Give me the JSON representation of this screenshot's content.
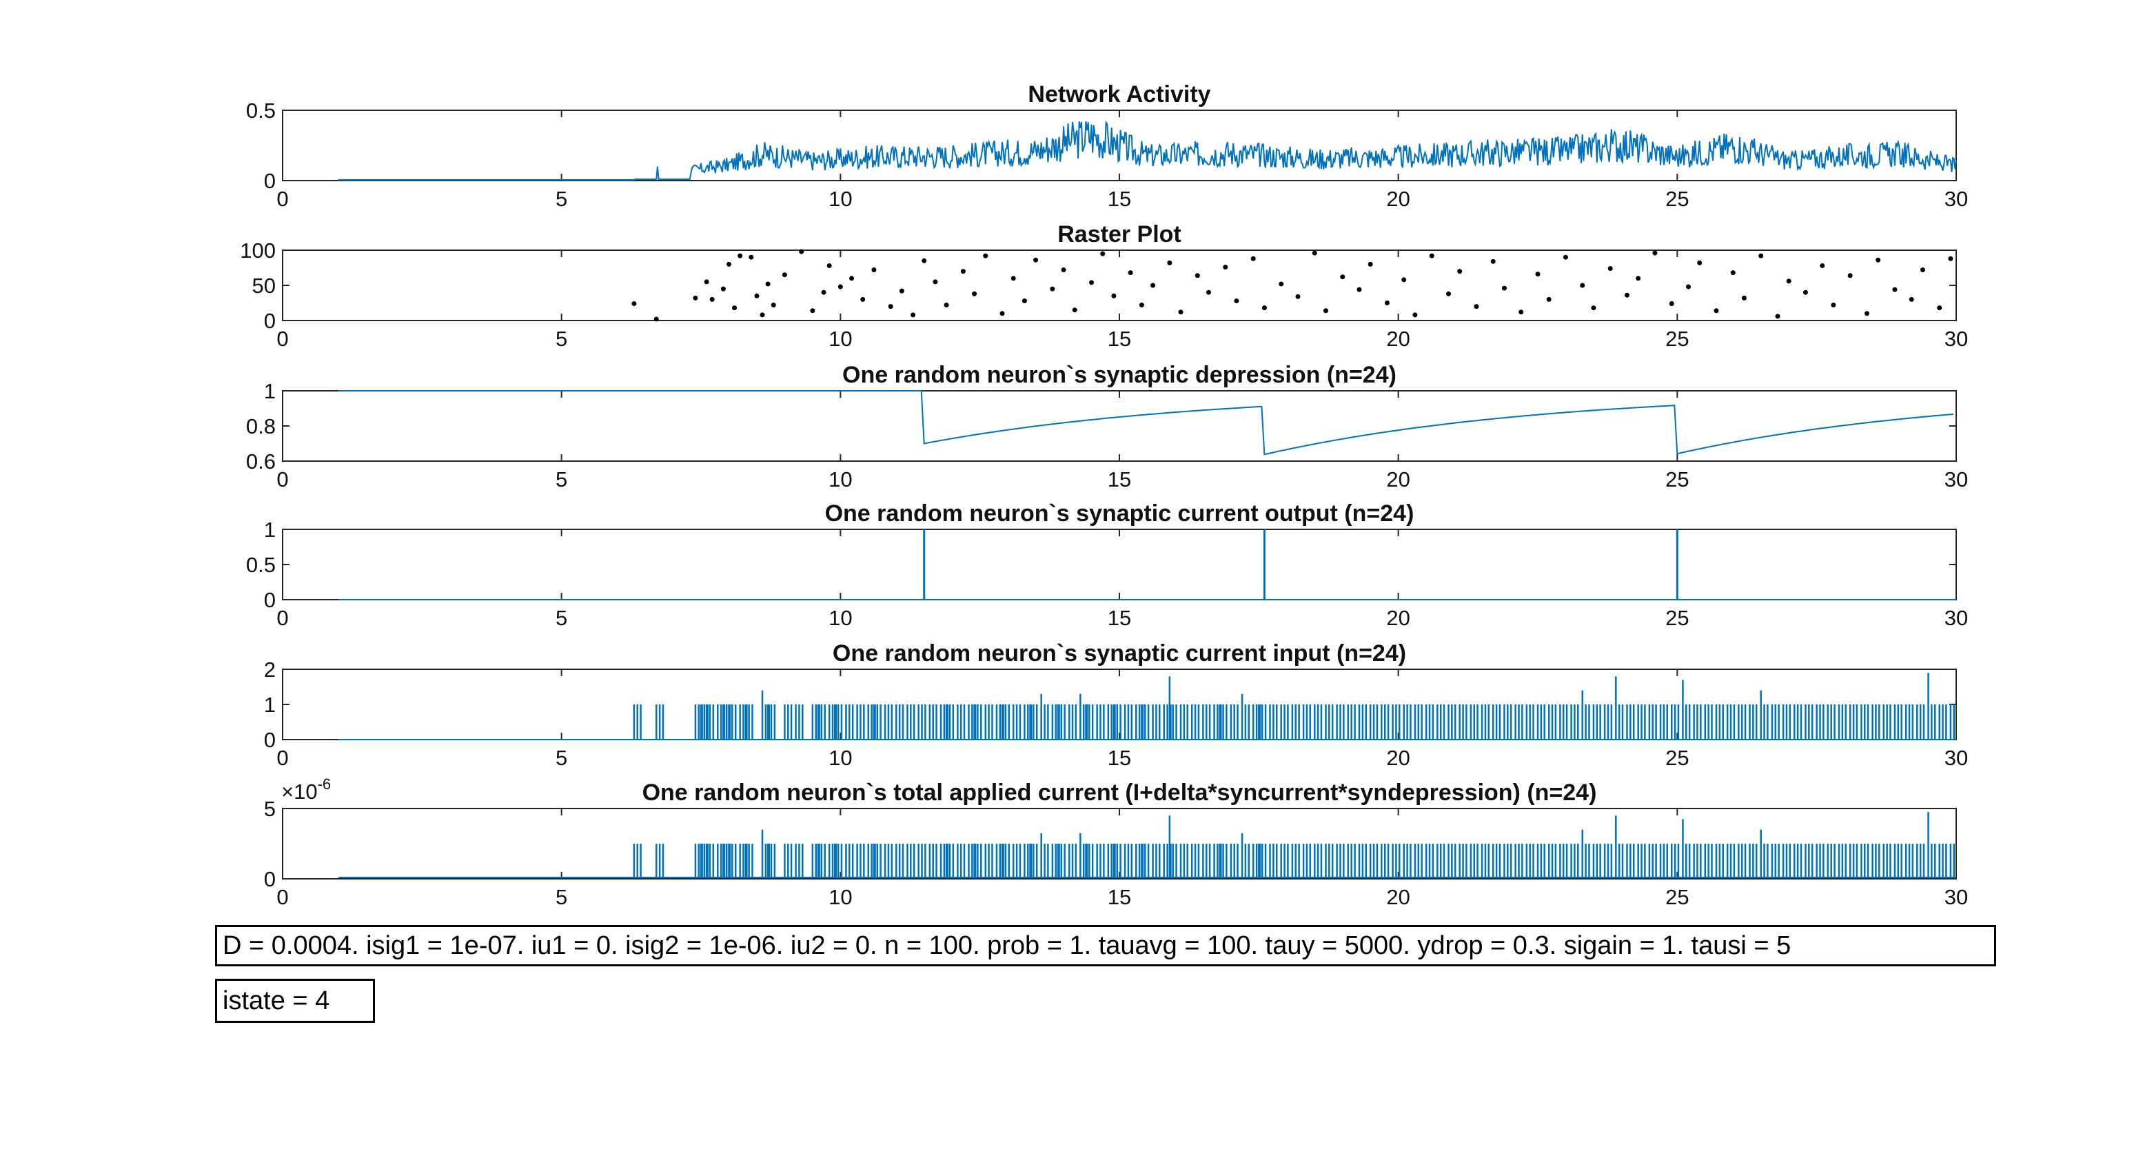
{
  "chart_data": [
    {
      "type": "line",
      "title": "Network Activity",
      "xlim": [
        0,
        30
      ],
      "ylim": [
        0,
        0.5
      ],
      "xticks": [
        0,
        5,
        10,
        15,
        20,
        25,
        30
      ],
      "xtick_labels": [
        "0",
        "5",
        "10",
        "15",
        "20",
        "25",
        "30"
      ],
      "yticks": [
        0,
        0.5
      ],
      "ytick_labels": [
        "0",
        "0.5"
      ],
      "color": "#0072BD",
      "description_points": {
        "x": [
          1,
          6.3,
          6.5,
          6.7,
          7.0,
          7.5,
          8.0,
          8.6,
          9.5,
          10.5,
          12,
          13.5,
          14.5,
          15.5,
          17,
          18.5,
          20,
          21.5,
          23,
          24,
          25,
          26,
          27,
          28,
          29,
          30
        ],
        "y": [
          0.01,
          0.0,
          0.1,
          0.0,
          0.08,
          0.12,
          0.16,
          0.27,
          0.2,
          0.24,
          0.25,
          0.3,
          0.46,
          0.25,
          0.28,
          0.22,
          0.24,
          0.28,
          0.3,
          0.37,
          0.24,
          0.35,
          0.2,
          0.25,
          0.27,
          0.15
        ]
      }
    },
    {
      "type": "scatter",
      "title": "Raster Plot",
      "xlim": [
        0,
        30
      ],
      "ylim": [
        0,
        100
      ],
      "xticks": [
        0,
        5,
        10,
        15,
        20,
        25,
        30
      ],
      "xtick_labels": [
        "0",
        "5",
        "10",
        "15",
        "20",
        "25",
        "30"
      ],
      "yticks": [
        0,
        50,
        100
      ],
      "ytick_labels": [
        "0",
        "50",
        "100"
      ],
      "color": "#000000",
      "x": [
        6.3,
        6.7,
        7.4,
        7.6,
        7.7,
        7.9,
        8.0,
        8.1,
        8.2,
        8.4,
        8.5,
        8.6,
        8.7,
        8.8,
        9.0,
        9.3,
        9.5,
        9.7,
        9.8,
        10.0,
        10.2,
        10.4,
        10.6,
        10.9,
        11.1,
        11.3,
        11.5,
        11.7,
        11.9,
        12.2,
        12.4,
        12.6,
        12.9,
        13.1,
        13.3,
        13.5,
        13.8,
        14.0,
        14.2,
        14.5,
        14.7,
        14.9,
        15.2,
        15.4,
        15.6,
        15.9,
        16.1,
        16.4,
        16.6,
        16.9,
        17.1,
        17.4,
        17.6,
        17.9,
        18.2,
        18.5,
        18.7,
        19.0,
        19.3,
        19.5,
        19.8,
        20.1,
        20.3,
        20.6,
        20.9,
        21.1,
        21.4,
        21.7,
        21.9,
        22.2,
        22.5,
        22.7,
        23.0,
        23.3,
        23.5,
        23.8,
        24.1,
        24.3,
        24.6,
        24.9,
        25.2,
        25.4,
        25.7,
        26.0,
        26.2,
        26.5,
        26.8,
        27.0,
        27.3,
        27.6,
        27.8,
        28.1,
        28.4,
        28.6,
        28.9,
        29.2,
        29.4,
        29.7,
        29.9
      ],
      "y": [
        24,
        2,
        32,
        55,
        30,
        45,
        80,
        18,
        92,
        90,
        35,
        8,
        52,
        22,
        65,
        98,
        14,
        40,
        78,
        48,
        60,
        30,
        72,
        20,
        42,
        8,
        85,
        55,
        22,
        70,
        38,
        92,
        10,
        60,
        28,
        86,
        45,
        72,
        15,
        54,
        95,
        35,
        68,
        22,
        50,
        82,
        12,
        64,
        40,
        76,
        28,
        88,
        18,
        52,
        34,
        96,
        14,
        62,
        44,
        80,
        25,
        58,
        8,
        92,
        38,
        70,
        20,
        84,
        46,
        12,
        66,
        30,
        90,
        50,
        18,
        74,
        36,
        60,
        96,
        24,
        48,
        82,
        14,
        68,
        32,
        92,
        6,
        56,
        40,
        78,
        22,
        64,
        10,
        86,
        44,
        30,
        72,
        18,
        88
      ]
    },
    {
      "type": "line",
      "title": "One random neuron`s synaptic depression (n=24)",
      "xlim": [
        0,
        30
      ],
      "ylim": [
        0.6,
        1
      ],
      "xticks": [
        0,
        5,
        10,
        15,
        20,
        25,
        30
      ],
      "xtick_labels": [
        "0",
        "5",
        "10",
        "15",
        "20",
        "25",
        "30"
      ],
      "yticks": [
        0.6,
        0.8,
        1
      ],
      "ytick_labels": [
        "0.6",
        "0.8",
        "1"
      ],
      "color": "#0072BD",
      "events": [
        11.5,
        17.6,
        25.0
      ],
      "baseline_start": 1.0,
      "drop": 0.3,
      "tau_s": 5
    },
    {
      "type": "line",
      "title": "One random neuron`s synaptic current output (n=24)",
      "xlim": [
        0,
        30
      ],
      "ylim": [
        0,
        1
      ],
      "xticks": [
        0,
        5,
        10,
        15,
        20,
        25,
        30
      ],
      "xtick_labels": [
        "0",
        "5",
        "10",
        "15",
        "20",
        "25",
        "30"
      ],
      "yticks": [
        0,
        0.5,
        1
      ],
      "ytick_labels": [
        "0",
        "0.5",
        "1"
      ],
      "color": "#0072BD",
      "spikes_x": [
        11.5,
        17.6,
        25.0
      ],
      "spikes_y": [
        1,
        1,
        1
      ]
    },
    {
      "type": "line",
      "title": "One random neuron`s synaptic current input (n=24)",
      "xlim": [
        0,
        30
      ],
      "ylim": [
        0,
        2
      ],
      "xticks": [
        0,
        5,
        10,
        15,
        20,
        25,
        30
      ],
      "xtick_labels": [
        "0",
        "5",
        "10",
        "15",
        "20",
        "25",
        "30"
      ],
      "yticks": [
        0,
        1,
        2
      ],
      "ytick_labels": [
        "0",
        "1",
        "2"
      ],
      "color": "#0072BD",
      "spikes_x": [
        6.3,
        6.7,
        7.4,
        7.5,
        7.6,
        7.8,
        7.9,
        8.0,
        8.2,
        8.3,
        8.6,
        8.7,
        9.0,
        9.2,
        9.5,
        9.6,
        9.8,
        9.9,
        10.1,
        10.3,
        10.5,
        10.6,
        10.8,
        11.0,
        11.2,
        11.4,
        11.6,
        11.8,
        11.9,
        12.1,
        12.3,
        12.4,
        12.6,
        12.8,
        12.9,
        13.1,
        13.3,
        13.4,
        13.6,
        13.8,
        13.9,
        14.1,
        14.3,
        14.4,
        14.6,
        14.8,
        14.9,
        15.1,
        15.3,
        15.4,
        15.6,
        15.8,
        15.9,
        16.1,
        16.3,
        16.5,
        16.7,
        16.8,
        17.0,
        17.2,
        17.4,
        17.5,
        17.7,
        17.9,
        18.1,
        18.3,
        18.5,
        18.7,
        18.9,
        19.1,
        19.3,
        19.5,
        19.7,
        19.9,
        20.1,
        20.3,
        20.5,
        20.7,
        20.9,
        21.1,
        21.3,
        21.5,
        21.7,
        21.9,
        22.1,
        22.3,
        22.5,
        22.7,
        22.9,
        23.1,
        23.3,
        23.5,
        23.7,
        23.9,
        24.1,
        24.3,
        24.5,
        24.7,
        24.9,
        25.1,
        25.3,
        25.5,
        25.7,
        25.9,
        26.1,
        26.3,
        26.5,
        26.7,
        26.9,
        27.1,
        27.3,
        27.5,
        27.7,
        27.9,
        28.1,
        28.3,
        28.5,
        28.7,
        28.9,
        29.1,
        29.3,
        29.5,
        29.7,
        29.9
      ],
      "spikes_y": [
        1,
        1,
        1,
        1,
        1,
        1,
        1,
        1,
        1,
        1,
        1.4,
        1,
        1,
        1,
        1,
        1,
        1,
        1,
        1,
        1,
        1,
        1,
        1,
        1,
        1,
        1,
        1,
        1,
        1,
        1,
        1,
        1,
        1,
        1,
        1,
        1,
        1,
        1,
        1.3,
        1,
        1,
        1,
        1.3,
        1,
        1,
        1,
        1,
        1,
        1,
        1,
        1,
        1,
        1.8,
        1,
        1,
        1,
        1,
        1,
        1,
        1.3,
        1,
        1,
        1,
        1,
        1,
        1,
        1,
        1,
        1,
        1,
        1,
        1,
        1,
        1,
        1,
        1,
        1,
        1,
        1,
        1,
        1,
        1,
        1,
        1,
        1,
        1,
        1,
        1,
        1,
        1,
        1.4,
        1,
        1,
        1.8,
        1,
        1,
        1,
        1,
        1,
        1.7,
        1,
        1,
        1,
        1,
        1,
        1,
        1.4,
        1,
        1,
        1,
        1,
        1,
        1,
        1,
        1,
        1,
        1,
        1,
        1,
        1,
        1,
        1.9,
        1,
        1
      ]
    },
    {
      "type": "line",
      "title": "One random neuron`s total applied current (I+delta*syncurrent*syndepression) (n=24)",
      "xlim": [
        0,
        30
      ],
      "ylim": [
        0,
        5
      ],
      "xticks": [
        0,
        5,
        10,
        15,
        20,
        25,
        30
      ],
      "xtick_labels": [
        "0",
        "5",
        "10",
        "15",
        "20",
        "25",
        "30"
      ],
      "yticks": [
        0,
        5
      ],
      "ytick_labels": [
        "0",
        "5"
      ],
      "exponent_label": "×10",
      "exponent_power": "-6",
      "color": "#0072BD",
      "baseline": 0.1,
      "spike_scale": 2.5,
      "source": "same spike train as the synaptic current input panel"
    }
  ],
  "params_box": {
    "text": "D = 0.0004. isig1 = 1e-07. iu1 = 0. isig2 = 1e-06. iu2 = 0. n = 100. prob = 1. tauavg = 100. tauy = 5000. ydrop = 0.3. sigain = 1. tausi = 5"
  },
  "state_box": {
    "text": "istate = 4"
  }
}
